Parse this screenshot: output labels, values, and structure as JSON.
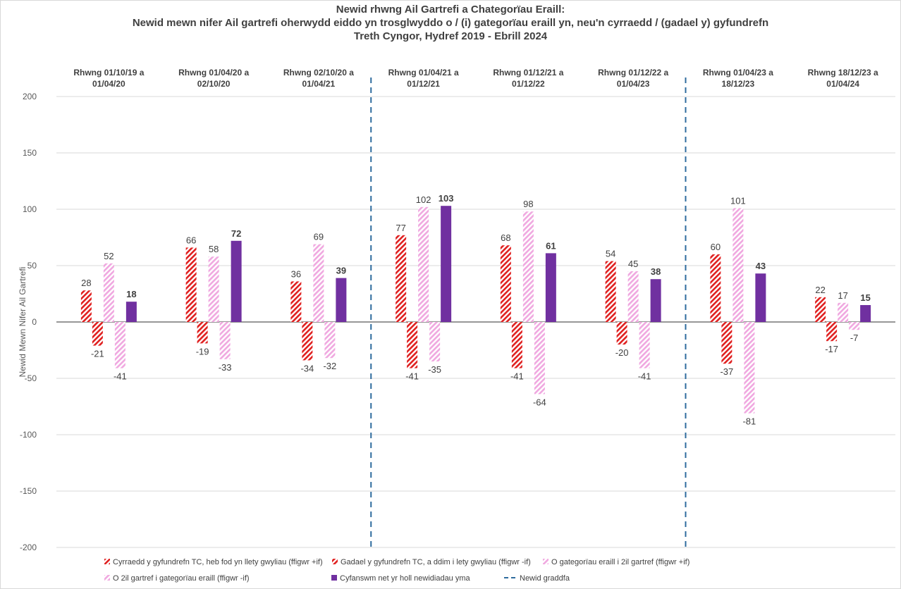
{
  "chart_data": {
    "type": "bar",
    "title_lines": [
      "Newid rhwng Ail Gartrefi a Chategorïau Eraill:",
      "Newid mewn nifer Ail gartrefi oherwydd eiddo yn trosglwyddo o / (i) gategorïau eraill yn, neu'n cyrraedd / (gadael y) gyfundrefn",
      "Treth Cyngor, Hydref 2019 - Ebrill 2024"
    ],
    "ylabel": "Newid Mewn Nifer Ail Gartrefi",
    "ylim": [
      -200,
      200
    ],
    "yticks": [
      "200",
      "150",
      "100",
      "50",
      "0",
      "-50",
      "-100",
      "-150",
      "-200"
    ],
    "ytick_values": [
      200,
      150,
      100,
      50,
      0,
      -50,
      -100,
      -150,
      -200
    ],
    "categories": [
      [
        "Rhwng 01/10/19 a",
        "01/04/20"
      ],
      [
        "Rhwng 01/04/20 a",
        "02/10/20"
      ],
      [
        "Rhwng 02/10/20 a",
        "01/04/21"
      ],
      [
        "Rhwng 01/04/21 a",
        "01/12/21"
      ],
      [
        "Rhwng 01/12/21 a",
        "01/12/22"
      ],
      [
        "Rhwng 01/12/22 a",
        "01/04/23"
      ],
      [
        "Rhwng 01/04/23 a",
        "18/12/23"
      ],
      [
        "Rhwng 18/12/23 a",
        "01/04/24"
      ]
    ],
    "series": [
      {
        "name": "Cyrraedd y gyfundrefn TC, heb fod yn llety gwyliau (ffigwr +if)",
        "style": "hatch",
        "color": "#e02020",
        "values": [
          28,
          66,
          36,
          77,
          68,
          54,
          60,
          22
        ],
        "bold": false
      },
      {
        "name": "Gadael y gyfundrefn TC, a ddim i lety gwyliau (ffigwr -if)",
        "style": "hatch",
        "color": "#e02020",
        "values": [
          -21,
          -19,
          -34,
          -41,
          -41,
          -20,
          -37,
          -17
        ],
        "bold": false
      },
      {
        "name": "O gategorïau eraill i 2il gartref (ffigwr +if)",
        "style": "hatch",
        "color": "#f0a8e0",
        "values": [
          52,
          58,
          69,
          102,
          98,
          45,
          101,
          17
        ],
        "bold": false
      },
      {
        "name": "O 2il gartref i gategorïau eraill (ffigwr -if)",
        "style": "hatch",
        "color": "#f0a8e0",
        "values": [
          -41,
          -33,
          -32,
          -35,
          -64,
          -41,
          -81,
          -7
        ],
        "bold": false
      },
      {
        "name": "Cyfanswm net yr holl newidiadau yma",
        "style": "solid",
        "color": "#7030a0",
        "values": [
          18,
          72,
          39,
          103,
          61,
          38,
          43,
          15
        ],
        "bold": true
      }
    ],
    "scale_change_lines_after_category": [
      3,
      6
    ],
    "scale_change_line": {
      "name": "Newid graddfa",
      "color": "#2e6b9e"
    },
    "grid": true,
    "legend_position": "bottom"
  }
}
